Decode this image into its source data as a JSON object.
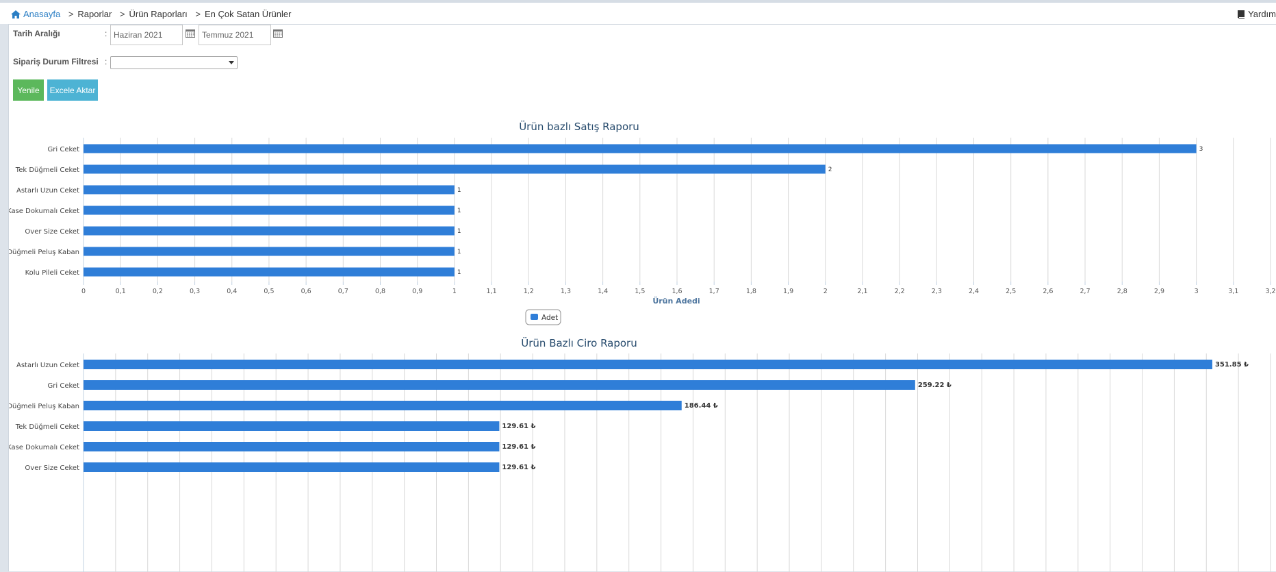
{
  "breadcrumb": {
    "home": "Anasayfa",
    "items": [
      "Raporlar",
      "Ürün Raporları",
      "En Çok Satan Ürünler"
    ]
  },
  "help_label": "Yardım",
  "filters": {
    "date_label": "Tarih Aralığı",
    "date_from": "Haziran 2021",
    "date_to": "Temmuz 2021",
    "status_label": "Sipariş Durum Filtresi",
    "status_value": ""
  },
  "buttons": {
    "refresh": "Yenile",
    "export": "Excele Aktar"
  },
  "colors": {
    "bar": "#2f7ed8",
    "grid": "#d8d8d8",
    "title": "#274b6d"
  },
  "chart_data": [
    {
      "type": "bar",
      "orientation": "horizontal",
      "title": "Ürün bazlı Satış Raporu",
      "xlabel": "Ürün Adedi",
      "categories": [
        "Gri Ceket",
        "Tek Düğmeli Ceket",
        "Astarlı Uzun Ceket",
        "Kase Dokumalı Ceket",
        "Over Size Ceket",
        "Düğmeli Peluş Kaban",
        "Kolu Pileli Ceket"
      ],
      "values": [
        3,
        2,
        1,
        1,
        1,
        1,
        1
      ],
      "data_labels": [
        "3",
        "2",
        "1",
        "1",
        "1",
        "1",
        "1"
      ],
      "xlim": [
        0,
        3.2
      ],
      "ticks": [
        "0",
        "0,1",
        "0,2",
        "0,3",
        "0,4",
        "0,5",
        "0,6",
        "0,7",
        "0,8",
        "0,9",
        "1",
        "1,1",
        "1,2",
        "1,3",
        "1,4",
        "1,5",
        "1,6",
        "1,7",
        "1,8",
        "1,9",
        "2",
        "2,1",
        "2,2",
        "2,3",
        "2,4",
        "2,5",
        "2,6",
        "2,7",
        "2,8",
        "2,9",
        "3",
        "3,1",
        "3,2"
      ],
      "legend": "Adet",
      "grid": true
    },
    {
      "type": "bar",
      "orientation": "horizontal",
      "title": "Ürün Bazlı Ciro Raporu",
      "categories": [
        "Astarlı Uzun Ceket",
        "Gri Ceket",
        "Düğmeli Peluş Kaban",
        "Tek Düğmeli Ceket",
        "Kase Dokumalı Ceket",
        "Over Size Ceket"
      ],
      "values": [
        351.85,
        259.22,
        186.44,
        129.61,
        129.61,
        129.61
      ],
      "data_labels": [
        "351.85 ₺",
        "259.22 ₺",
        "186.44 ₺",
        "129.61 ₺",
        "129.61 ₺",
        "129.61 ₺"
      ],
      "xlim": [
        0,
        370
      ],
      "grid": true
    }
  ]
}
